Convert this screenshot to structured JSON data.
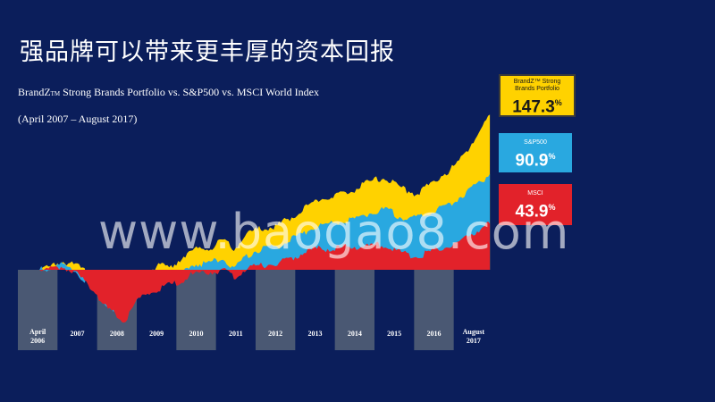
{
  "title": "强品牌可以带来更丰厚的资本回报",
  "subtitle_main": "BrandZ",
  "subtitle_tm": "TM",
  "subtitle_rest": " Strong Brands Portfolio  vs. S&P500  vs. MSCI  World Index",
  "period": "(April  2007  – August 2017)",
  "watermark": "www.baogao8.com",
  "colors": {
    "background": "#0b1e5b",
    "brandz": "#ffd200",
    "sp500": "#29a8e0",
    "msci": "#e2222a",
    "year_band": "#4a5873"
  },
  "callouts": [
    {
      "name": "BrandZ™ Strong\nBrands Portfolio",
      "value": "147.3",
      "unit": "%"
    },
    {
      "name": "S&P500",
      "value": "90.9",
      "unit": "%"
    },
    {
      "name": "MSCI",
      "value": "43.9",
      "unit": "%"
    }
  ],
  "chart_data": {
    "type": "area",
    "x_labels": [
      "April\n2006",
      "2007",
      "2008",
      "2009",
      "2010",
      "2011",
      "2012",
      "2013",
      "2014",
      "2015",
      "2016",
      "August\n2017"
    ],
    "shaded_years": [
      "April\n2006",
      "2008",
      "2010",
      "2012",
      "2014",
      "2016"
    ],
    "x": [
      2007.25,
      2007.5,
      2007.75,
      2008.0,
      2008.25,
      2008.5,
      2008.75,
      2009.0,
      2009.2,
      2009.5,
      2009.75,
      2010.0,
      2010.25,
      2010.5,
      2010.75,
      2011.0,
      2011.25,
      2011.5,
      2011.75,
      2012.0,
      2012.25,
      2012.5,
      2012.75,
      2013.0,
      2013.25,
      2013.5,
      2013.75,
      2014.0,
      2014.25,
      2014.5,
      2014.75,
      2015.0,
      2015.25,
      2015.5,
      2015.75,
      2016.0,
      2016.25,
      2016.5,
      2016.75,
      2017.0,
      2017.25,
      2017.5,
      2017.67
    ],
    "series": [
      {
        "name": "BrandZ™ Strong Brands Portfolio",
        "values": [
          0,
          3,
          8,
          6,
          1,
          -5,
          -18,
          -22,
          -25,
          -10,
          -2,
          5,
          2,
          10,
          18,
          20,
          22,
          28,
          20,
          32,
          38,
          40,
          42,
          48,
          55,
          62,
          68,
          70,
          72,
          75,
          82,
          85,
          88,
          80,
          75,
          72,
          80,
          88,
          95,
          105,
          120,
          135,
          147.3
        ]
      },
      {
        "name": "S&P500",
        "values": [
          0,
          2,
          4,
          2,
          -8,
          -15,
          -30,
          -38,
          -45,
          -25,
          -15,
          -10,
          -6,
          -3,
          4,
          6,
          8,
          10,
          2,
          12,
          18,
          20,
          22,
          28,
          32,
          38,
          42,
          44,
          46,
          48,
          52,
          55,
          58,
          52,
          48,
          50,
          55,
          58,
          62,
          70,
          78,
          85,
          90.9
        ]
      },
      {
        "name": "MSCI",
        "values": [
          0,
          1,
          3,
          0,
          -10,
          -18,
          -35,
          -42,
          -50,
          -30,
          -22,
          -18,
          -15,
          -12,
          -5,
          -3,
          -2,
          0,
          -8,
          0,
          3,
          5,
          6,
          10,
          14,
          18,
          20,
          20,
          21,
          22,
          22,
          23,
          24,
          18,
          14,
          13,
          16,
          20,
          22,
          28,
          34,
          40,
          43.9
        ]
      }
    ],
    "x_range": [
      2006.75,
      2017.75
    ],
    "y_range": [
      -60,
      160
    ],
    "grid": false,
    "legend": "right"
  }
}
